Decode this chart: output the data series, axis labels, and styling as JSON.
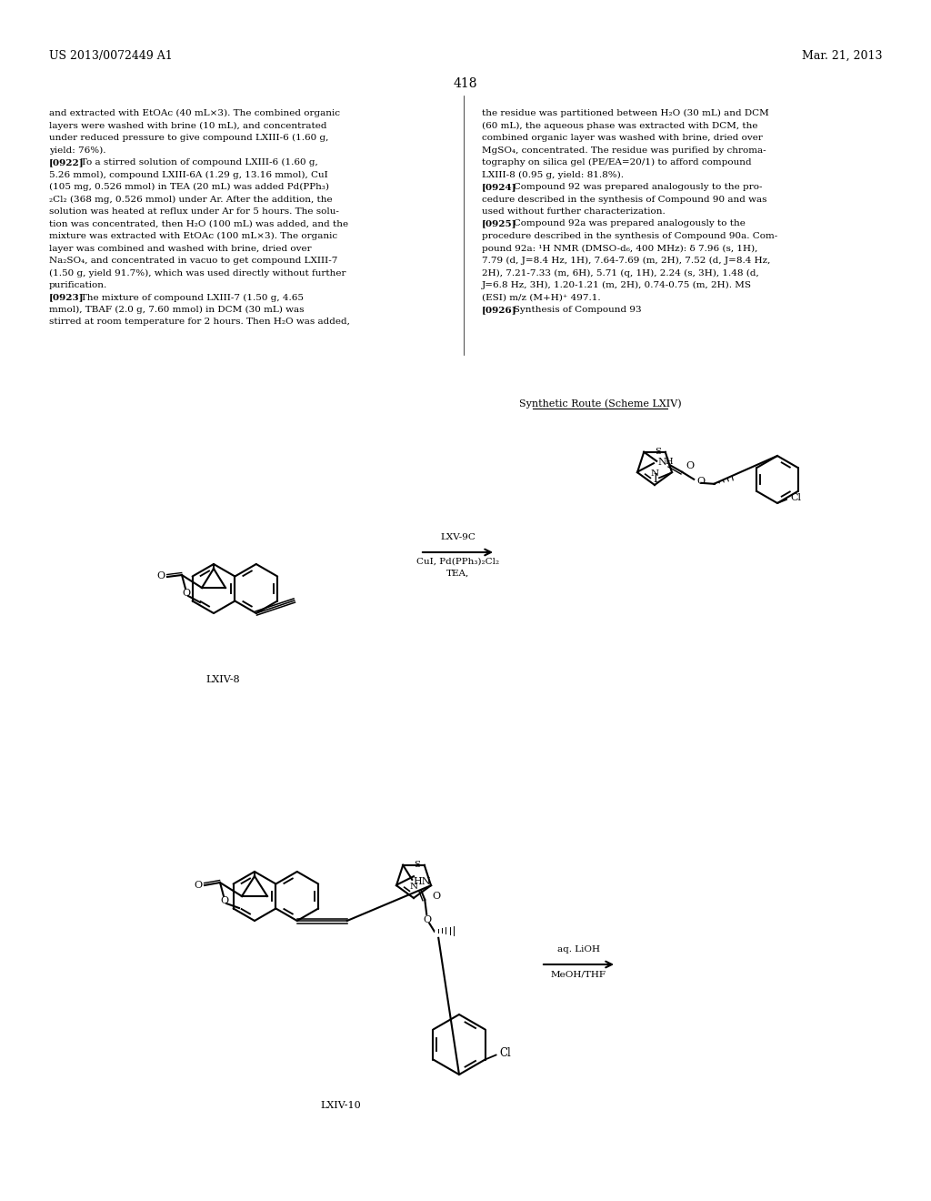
{
  "background_color": "#ffffff",
  "page_number": "418",
  "header_left": "US 2013/0072449 A1",
  "header_right": "Mar. 21, 2013",
  "left_column_text": [
    "and extracted with EtOAc (40 mL×3). The combined organic",
    "layers were washed with brine (10 mL), and concentrated",
    "under reduced pressure to give compound LXIII-6 (1.60 g,",
    "yield: 76%).",
    "[0922]   To a stirred solution of compound LXIII-6 (1.60 g,",
    "5.26 mmol), compound LXIII-6A (1.29 g, 13.16 mmol), CuI",
    "(105 mg, 0.526 mmol) in TEA (20 mL) was added Pd(PPh₃)",
    "₂Cl₂ (368 mg, 0.526 mmol) under Ar. After the addition, the",
    "solution was heated at reflux under Ar for 5 hours. The solu-",
    "tion was concentrated, then H₂O (100 mL) was added, and the",
    "mixture was extracted with EtOAc (100 mL×3). The organic",
    "layer was combined and washed with brine, dried over",
    "Na₂SO₄, and concentrated in vacuo to get compound LXIII-7",
    "(1.50 g, yield 91.7%), which was used directly without further",
    "purification.",
    "[0923]   The mixture of compound LXIII-7 (1.50 g, 4.65",
    "mmol), TBAF (2.0 g, 7.60 mmol) in DCM (30 mL) was",
    "stirred at room temperature for 2 hours. Then H₂O was added,"
  ],
  "right_column_text": [
    "the residue was partitioned between H₂O (30 mL) and DCM",
    "(60 mL), the aqueous phase was extracted with DCM, the",
    "combined organic layer was washed with brine, dried over",
    "MgSO₄, concentrated. The residue was purified by chroma-",
    "tography on silica gel (PE/EA=20/1) to afford compound",
    "LXIII-8 (0.95 g, yield: 81.8%).",
    "[0924]   Compound 92 was prepared analogously to the pro-",
    "cedure described in the synthesis of Compound 90 and was",
    "used without further characterization.",
    "[0925]   Compound 92a was prepared analogously to the",
    "procedure described in the synthesis of Compound 90a. Com-",
    "pound 92a: ¹H NMR (DMSO-d₆, 400 MHz): δ 7.96 (s, 1H),",
    "7.79 (d, J=8.4 Hz, 1H), 7.64-7.69 (m, 2H), 7.52 (d, J=8.4 Hz,",
    "2H), 7.21-7.33 (m, 6H), 5.71 (q, 1H), 2.24 (s, 3H), 1.48 (d,",
    "J=6.8 Hz, 3H), 1.20-1.21 (m, 2H), 0.74-0.75 (m, 2H). MS",
    "(ESI) m/z (M+H)⁺ 497.1.",
    "[0926]   Synthesis of Compound 93"
  ],
  "scheme_label": "Synthetic Route (Scheme LXIV)",
  "compound_label_1": "LXIV-8",
  "compound_label_2": "LXIV-10",
  "reaction_label_1_line1": "LXV-9C",
  "reaction_label_1_line2": "CuI, Pd(PPh₃)₂Cl₂",
  "reaction_label_1_line3": "TEA,",
  "reaction_label_2_line1": "aq. LiOH",
  "reaction_label_2_line2": "MeOH/THF"
}
